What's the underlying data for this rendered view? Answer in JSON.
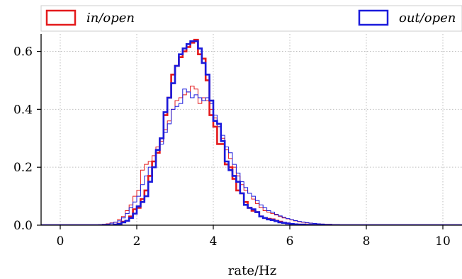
{
  "chart_data": {
    "type": "histogram",
    "xlabel": "rate/Hz",
    "ylabel": "",
    "xlim": [
      -0.5,
      10.5
    ],
    "ylim": [
      0,
      0.66
    ],
    "xticks": [
      "0",
      "2",
      "4",
      "6",
      "8",
      "10"
    ],
    "yticks": [
      "0.0",
      "0.2",
      "0.4",
      "0.6"
    ],
    "grid": true,
    "legend": {
      "placement": "top",
      "entries": [
        "in/open",
        "out/open"
      ]
    },
    "bin_width": 0.1,
    "series": [
      {
        "name": "in/open",
        "color": "#e41a1c",
        "style": "thick",
        "x": [
          1.4,
          1.5,
          1.6,
          1.7,
          1.8,
          1.9,
          2.0,
          2.1,
          2.2,
          2.3,
          2.4,
          2.5,
          2.6,
          2.7,
          2.8,
          2.9,
          3.0,
          3.1,
          3.2,
          3.3,
          3.4,
          3.5,
          3.6,
          3.7,
          3.8,
          3.9,
          4.0,
          4.1,
          4.2,
          4.3,
          4.4,
          4.5,
          4.6,
          4.7,
          4.8,
          4.9,
          5.0,
          5.1,
          5.2,
          5.3,
          5.4,
          5.5,
          5.6,
          5.7,
          5.8,
          5.9,
          6.0,
          6.1,
          6.2,
          6.3,
          6.4,
          6.5,
          6.6,
          6.7,
          6.8,
          6.9,
          7.0
        ],
        "values": [
          0.002,
          0.005,
          0.012,
          0.015,
          0.03,
          0.055,
          0.06,
          0.09,
          0.12,
          0.17,
          0.22,
          0.25,
          0.3,
          0.38,
          0.44,
          0.52,
          0.55,
          0.58,
          0.6,
          0.615,
          0.63,
          0.64,
          0.59,
          0.575,
          0.5,
          0.38,
          0.34,
          0.28,
          0.28,
          0.21,
          0.2,
          0.16,
          0.12,
          0.11,
          0.08,
          0.06,
          0.05,
          0.045,
          0.03,
          0.025,
          0.022,
          0.02,
          0.015,
          0.012,
          0.008,
          0.006,
          0.004,
          0.003,
          0.002,
          0.002,
          0.001,
          0.001,
          0.001,
          0.001,
          0.0,
          0.0,
          0.0
        ]
      },
      {
        "name": "out/open",
        "color": "#1a1adc",
        "style": "thick",
        "x": [
          1.4,
          1.5,
          1.6,
          1.7,
          1.8,
          1.9,
          2.0,
          2.1,
          2.2,
          2.3,
          2.4,
          2.5,
          2.6,
          2.7,
          2.8,
          2.9,
          3.0,
          3.1,
          3.2,
          3.3,
          3.4,
          3.5,
          3.6,
          3.7,
          3.8,
          3.9,
          4.0,
          4.1,
          4.2,
          4.3,
          4.4,
          4.5,
          4.6,
          4.7,
          4.8,
          4.9,
          5.0,
          5.1,
          5.2,
          5.3,
          5.4,
          5.5,
          5.6,
          5.7,
          5.8,
          5.9,
          6.0,
          6.1,
          6.2,
          6.3,
          6.4,
          6.5,
          6.6,
          6.7,
          6.8,
          6.9,
          7.0
        ],
        "values": [
          0.002,
          0.004,
          0.01,
          0.015,
          0.025,
          0.04,
          0.065,
          0.08,
          0.1,
          0.15,
          0.2,
          0.26,
          0.3,
          0.39,
          0.44,
          0.49,
          0.55,
          0.59,
          0.61,
          0.625,
          0.635,
          0.635,
          0.61,
          0.56,
          0.52,
          0.43,
          0.36,
          0.35,
          0.29,
          0.22,
          0.19,
          0.17,
          0.15,
          0.11,
          0.07,
          0.06,
          0.055,
          0.045,
          0.03,
          0.025,
          0.02,
          0.018,
          0.014,
          0.01,
          0.008,
          0.006,
          0.004,
          0.003,
          0.002,
          0.002,
          0.001,
          0.001,
          0.001,
          0.001,
          0.001,
          0.0,
          0.0
        ]
      },
      {
        "name": "",
        "color": "#e41a1c",
        "style": "thin",
        "x": [
          1.0,
          1.1,
          1.2,
          1.3,
          1.4,
          1.5,
          1.6,
          1.7,
          1.8,
          1.9,
          2.0,
          2.1,
          2.2,
          2.3,
          2.4,
          2.5,
          2.6,
          2.7,
          2.8,
          2.9,
          3.0,
          3.1,
          3.2,
          3.3,
          3.4,
          3.5,
          3.6,
          3.7,
          3.8,
          3.9,
          4.0,
          4.1,
          4.2,
          4.3,
          4.4,
          4.5,
          4.6,
          4.7,
          4.8,
          4.9,
          5.0,
          5.1,
          5.2,
          5.3,
          5.4,
          5.5,
          5.6,
          5.7,
          5.8,
          5.9,
          6.0,
          6.1,
          6.2,
          6.3,
          6.4,
          6.5,
          6.6,
          6.7,
          6.8,
          6.9,
          7.0,
          7.1,
          7.2,
          7.3,
          7.4,
          7.5
        ],
        "values": [
          0.002,
          0.003,
          0.005,
          0.008,
          0.01,
          0.02,
          0.03,
          0.05,
          0.07,
          0.1,
          0.12,
          0.19,
          0.21,
          0.22,
          0.24,
          0.27,
          0.29,
          0.33,
          0.36,
          0.4,
          0.43,
          0.44,
          0.45,
          0.46,
          0.48,
          0.47,
          0.42,
          0.44,
          0.43,
          0.4,
          0.37,
          0.34,
          0.3,
          0.26,
          0.23,
          0.2,
          0.17,
          0.14,
          0.12,
          0.11,
          0.09,
          0.075,
          0.06,
          0.05,
          0.045,
          0.04,
          0.035,
          0.03,
          0.025,
          0.022,
          0.018,
          0.015,
          0.012,
          0.01,
          0.008,
          0.007,
          0.006,
          0.005,
          0.004,
          0.003,
          0.003,
          0.002,
          0.002,
          0.001,
          0.001,
          0.001
        ]
      },
      {
        "name": "",
        "color": "#1a1adc",
        "style": "thin",
        "x": [
          1.0,
          1.1,
          1.2,
          1.3,
          1.4,
          1.5,
          1.6,
          1.7,
          1.8,
          1.9,
          2.0,
          2.1,
          2.2,
          2.3,
          2.4,
          2.5,
          2.6,
          2.7,
          2.8,
          2.9,
          3.0,
          3.1,
          3.2,
          3.3,
          3.4,
          3.5,
          3.6,
          3.7,
          3.8,
          3.9,
          4.0,
          4.1,
          4.2,
          4.3,
          4.4,
          4.5,
          4.6,
          4.7,
          4.8,
          4.9,
          5.0,
          5.1,
          5.2,
          5.3,
          5.4,
          5.5,
          5.6,
          5.7,
          5.8,
          5.9,
          6.0,
          6.1,
          6.2,
          6.3,
          6.4,
          6.5,
          6.6,
          6.7,
          6.8,
          6.9,
          7.0,
          7.1,
          7.2,
          7.3,
          7.4,
          7.5
        ],
        "values": [
          0.002,
          0.003,
          0.004,
          0.007,
          0.01,
          0.015,
          0.025,
          0.04,
          0.06,
          0.08,
          0.1,
          0.14,
          0.17,
          0.2,
          0.22,
          0.25,
          0.28,
          0.32,
          0.35,
          0.4,
          0.41,
          0.42,
          0.47,
          0.46,
          0.44,
          0.45,
          0.44,
          0.43,
          0.44,
          0.42,
          0.38,
          0.34,
          0.31,
          0.27,
          0.25,
          0.21,
          0.18,
          0.15,
          0.13,
          0.11,
          0.1,
          0.085,
          0.07,
          0.06,
          0.05,
          0.045,
          0.038,
          0.032,
          0.027,
          0.023,
          0.019,
          0.016,
          0.013,
          0.011,
          0.009,
          0.007,
          0.006,
          0.005,
          0.004,
          0.003,
          0.003,
          0.002,
          0.002,
          0.001,
          0.001,
          0.001
        ]
      }
    ]
  }
}
